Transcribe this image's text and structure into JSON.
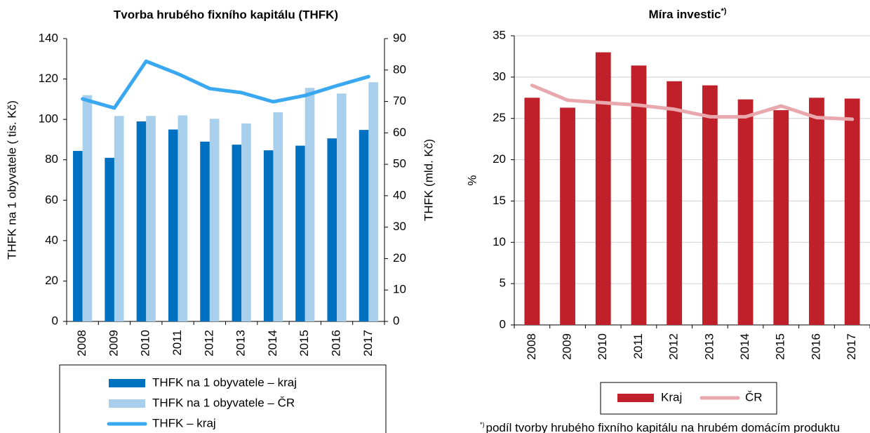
{
  "chart_data": [
    {
      "type": "combo",
      "title": "Tvorba hrubého fixního kapitálu (THFK)",
      "y_label": "THFK na 1 obyvatele ( tis. Kč)",
      "y2_label": "THFK (mld. Kč)",
      "categories": [
        "2008",
        "2009",
        "2010",
        "2011",
        "2012",
        "2013",
        "2014",
        "2015",
        "2016",
        "2017"
      ],
      "series": [
        {
          "name": "THFK na 1 obyvatele – kraj",
          "type": "bar",
          "color": "#0070c0",
          "values": [
            84.4,
            81,
            99,
            95,
            89,
            87.5,
            84.7,
            87,
            90.6,
            94.8
          ]
        },
        {
          "name": "THFK na 1 obyvatele – ČR",
          "type": "bar",
          "color": "#a8cfeb",
          "values": [
            112,
            101.7,
            101.7,
            102,
            100.3,
            98,
            103.5,
            115.6,
            112.8,
            118.4
          ]
        },
        {
          "name": "THFK – kraj",
          "type": "line",
          "axis": "y2",
          "color": "#3aa8f0",
          "values": [
            70.8,
            67.9,
            82.8,
            78.8,
            74.1,
            72.8,
            69.9,
            71.9,
            75,
            77.9
          ]
        }
      ],
      "ylim": [
        0,
        140
      ],
      "yticks": [
        0,
        20,
        40,
        60,
        80,
        100,
        120,
        140
      ],
      "y2lim": [
        0,
        90
      ],
      "y2ticks": [
        0,
        10,
        20,
        30,
        40,
        50,
        60,
        70,
        80,
        90
      ],
      "grid": false
    },
    {
      "type": "combo",
      "title": "Míra investic",
      "title_superscript": "*)",
      "y_label": "%",
      "categories": [
        "2008",
        "2009",
        "2010",
        "2011",
        "2012",
        "2013",
        "2014",
        "2015",
        "2016",
        "2017"
      ],
      "series": [
        {
          "name": "Kraj",
          "type": "bar",
          "color": "#c0202a",
          "values": [
            27.5,
            26.3,
            33,
            31.4,
            29.5,
            29,
            27.3,
            26,
            27.5,
            27.4
          ]
        },
        {
          "name": "ČR",
          "type": "line",
          "color": "#e8a8ae",
          "values": [
            29,
            27.2,
            26.9,
            26.6,
            26.1,
            25.2,
            25.2,
            26.5,
            25.1,
            24.9
          ]
        }
      ],
      "ylim": [
        0,
        35
      ],
      "yticks": [
        0,
        5,
        10,
        15,
        20,
        25,
        30,
        35
      ],
      "grid": true,
      "note_marker": "*)",
      "note": "podíl tvorby hrubého fixního kapitálu na hrubém domácím produktu"
    }
  ]
}
